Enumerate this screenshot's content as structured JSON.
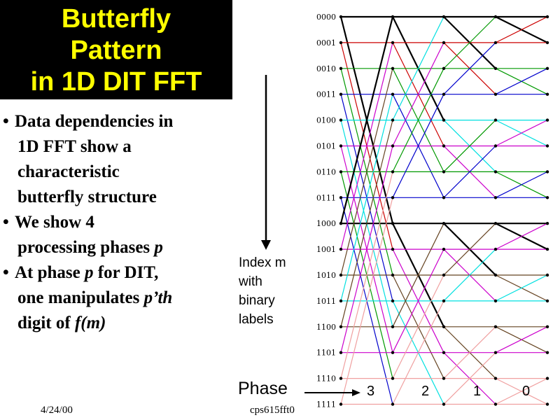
{
  "title": [
    "Butterfly",
    "Pattern",
    "in 1D DIT FFT"
  ],
  "bullets": [
    {
      "mark": "•",
      "parts": [
        {
          "t": "Data dependencies in"
        }
      ]
    },
    {
      "parts": [
        {
          "t": "1D FFT show a"
        }
      ]
    },
    {
      "parts": [
        {
          "t": "characteristic"
        }
      ]
    },
    {
      "parts": [
        {
          "t": "butterfly structure"
        }
      ]
    },
    {
      "mark": "•",
      "parts": [
        {
          "t": "We show 4"
        }
      ]
    },
    {
      "parts": [
        {
          "t": "processing phases "
        },
        {
          "t": "p",
          "i": true
        }
      ]
    },
    {
      "mark": "•",
      "parts": [
        {
          "t": "At phase "
        },
        {
          "t": "p",
          "i": true
        },
        {
          "t": " for DIT,"
        }
      ]
    },
    {
      "parts": [
        {
          "t": "one manipulates "
        },
        {
          "t": "p’th",
          "i": true
        }
      ]
    },
    {
      "parts": [
        {
          "t": "digit of "
        },
        {
          "t": "f(m)",
          "i": true
        }
      ]
    }
  ],
  "index_label": [
    "Index m",
    "with",
    "binary",
    "labels"
  ],
  "phase_label": "Phase",
  "phase_numbers": [
    "3",
    "2",
    "1",
    "0"
  ],
  "binary_labels": [
    "0000",
    "0001",
    "0010",
    "0011",
    "0100",
    "0101",
    "0110",
    "0111",
    "1000",
    "1001",
    "1010",
    "1011",
    "1100",
    "1101",
    "1110",
    "1111"
  ],
  "row_colors": [
    "#000000",
    "#cc0000",
    "#009900",
    "#0000cc",
    "#00e0e0",
    "#cc00cc",
    "#009900",
    "#0000cc",
    "#000000",
    "#cc00cc",
    "#654321",
    "#00e0e0",
    "#654321",
    "#cc00cc",
    "#f0a0a0",
    "#f0a0a0"
  ],
  "footer": {
    "date": "4/24/00",
    "file": "cps615fft0"
  }
}
